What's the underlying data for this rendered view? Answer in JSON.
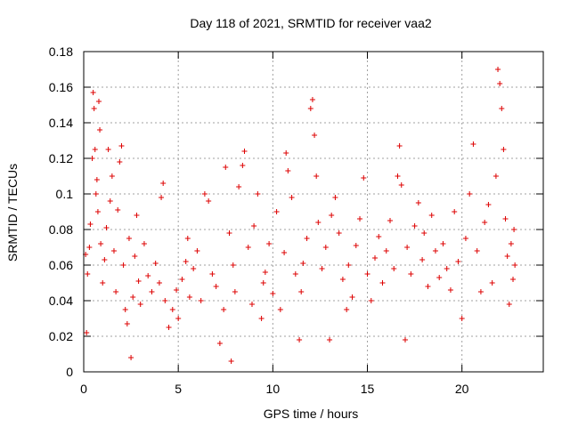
{
  "chart_data": {
    "type": "scatter",
    "title": "Day 118 of 2021, SRMTID for receiver vaa2",
    "xlabel": "GPS time / hours",
    "ylabel": "SRMTID / TECUs",
    "xlim": [
      0,
      24.3
    ],
    "ylim": [
      0,
      0.18
    ],
    "xticks": [
      0,
      5,
      10,
      15,
      20
    ],
    "xtick_labels": [
      "0",
      "5",
      "10",
      "15",
      "20"
    ],
    "yticks": [
      0,
      0.02,
      0.04,
      0.06,
      0.08,
      0.1,
      0.12,
      0.14,
      0.16,
      0.18
    ],
    "ytick_labels": [
      "0",
      "0.02",
      "0.04",
      "0.06",
      "0.08",
      "0.1",
      "0.12",
      "0.14",
      "0.16",
      "0.18"
    ],
    "grid": true,
    "marker": "+",
    "color": "#dd0000",
    "x_data_range": [
      0,
      22.8
    ],
    "series": [
      {
        "name": "SRMTID",
        "points": [
          [
            0.1,
            0.066
          ],
          [
            0.15,
            0.022
          ],
          [
            0.2,
            0.055
          ],
          [
            0.3,
            0.07
          ],
          [
            0.35,
            0.083
          ],
          [
            0.45,
            0.12
          ],
          [
            0.5,
            0.157
          ],
          [
            0.55,
            0.148
          ],
          [
            0.6,
            0.125
          ],
          [
            0.65,
            0.1
          ],
          [
            0.7,
            0.108
          ],
          [
            0.75,
            0.09
          ],
          [
            0.8,
            0.152
          ],
          [
            0.85,
            0.136
          ],
          [
            0.9,
            0.072
          ],
          [
            1.0,
            0.05
          ],
          [
            1.1,
            0.063
          ],
          [
            1.2,
            0.081
          ],
          [
            1.3,
            0.125
          ],
          [
            1.4,
            0.096
          ],
          [
            1.5,
            0.11
          ],
          [
            1.6,
            0.068
          ],
          [
            1.7,
            0.045
          ],
          [
            1.8,
            0.091
          ],
          [
            1.9,
            0.118
          ],
          [
            2.0,
            0.127
          ],
          [
            2.1,
            0.06
          ],
          [
            2.2,
            0.035
          ],
          [
            2.3,
            0.027
          ],
          [
            2.4,
            0.075
          ],
          [
            2.5,
            0.008
          ],
          [
            2.6,
            0.042
          ],
          [
            2.7,
            0.065
          ],
          [
            2.8,
            0.088
          ],
          [
            2.9,
            0.051
          ],
          [
            3.0,
            0.038
          ],
          [
            3.2,
            0.072
          ],
          [
            3.4,
            0.054
          ],
          [
            3.6,
            0.045
          ],
          [
            3.8,
            0.061
          ],
          [
            4.0,
            0.05
          ],
          [
            4.1,
            0.098
          ],
          [
            4.2,
            0.106
          ],
          [
            4.3,
            0.04
          ],
          [
            4.5,
            0.025
          ],
          [
            4.7,
            0.035
          ],
          [
            4.9,
            0.046
          ],
          [
            5.0,
            0.03
          ],
          [
            5.2,
            0.052
          ],
          [
            5.4,
            0.062
          ],
          [
            5.5,
            0.075
          ],
          [
            5.6,
            0.042
          ],
          [
            5.8,
            0.058
          ],
          [
            6.0,
            0.068
          ],
          [
            6.2,
            0.04
          ],
          [
            6.4,
            0.1
          ],
          [
            6.6,
            0.096
          ],
          [
            6.8,
            0.055
          ],
          [
            7.0,
            0.048
          ],
          [
            7.2,
            0.016
          ],
          [
            7.4,
            0.035
          ],
          [
            7.5,
            0.115
          ],
          [
            7.7,
            0.078
          ],
          [
            7.8,
            0.006
          ],
          [
            7.9,
            0.06
          ],
          [
            8.0,
            0.045
          ],
          [
            8.2,
            0.104
          ],
          [
            8.4,
            0.116
          ],
          [
            8.5,
            0.124
          ],
          [
            8.7,
            0.07
          ],
          [
            8.9,
            0.038
          ],
          [
            9.0,
            0.082
          ],
          [
            9.2,
            0.1
          ],
          [
            9.4,
            0.03
          ],
          [
            9.5,
            0.05
          ],
          [
            9.6,
            0.056
          ],
          [
            9.8,
            0.072
          ],
          [
            10.0,
            0.044
          ],
          [
            10.2,
            0.09
          ],
          [
            10.4,
            0.035
          ],
          [
            10.6,
            0.067
          ],
          [
            10.7,
            0.123
          ],
          [
            10.8,
            0.113
          ],
          [
            11.0,
            0.098
          ],
          [
            11.2,
            0.055
          ],
          [
            11.4,
            0.018
          ],
          [
            11.5,
            0.045
          ],
          [
            11.6,
            0.061
          ],
          [
            11.8,
            0.075
          ],
          [
            12.0,
            0.148
          ],
          [
            12.1,
            0.153
          ],
          [
            12.2,
            0.133
          ],
          [
            12.3,
            0.11
          ],
          [
            12.4,
            0.084
          ],
          [
            12.6,
            0.058
          ],
          [
            12.8,
            0.07
          ],
          [
            13.0,
            0.018
          ],
          [
            13.1,
            0.088
          ],
          [
            13.3,
            0.098
          ],
          [
            13.5,
            0.078
          ],
          [
            13.7,
            0.052
          ],
          [
            13.9,
            0.035
          ],
          [
            14.0,
            0.06
          ],
          [
            14.2,
            0.042
          ],
          [
            14.4,
            0.071
          ],
          [
            14.6,
            0.086
          ],
          [
            14.8,
            0.109
          ],
          [
            15.0,
            0.055
          ],
          [
            15.2,
            0.04
          ],
          [
            15.4,
            0.064
          ],
          [
            15.6,
            0.076
          ],
          [
            15.8,
            0.05
          ],
          [
            16.0,
            0.068
          ],
          [
            16.2,
            0.085
          ],
          [
            16.4,
            0.058
          ],
          [
            16.6,
            0.11
          ],
          [
            16.7,
            0.127
          ],
          [
            16.8,
            0.105
          ],
          [
            17.0,
            0.018
          ],
          [
            17.1,
            0.07
          ],
          [
            17.3,
            0.055
          ],
          [
            17.5,
            0.082
          ],
          [
            17.7,
            0.095
          ],
          [
            17.9,
            0.063
          ],
          [
            18.0,
            0.078
          ],
          [
            18.2,
            0.048
          ],
          [
            18.4,
            0.088
          ],
          [
            18.6,
            0.068
          ],
          [
            18.8,
            0.053
          ],
          [
            19.0,
            0.072
          ],
          [
            19.2,
            0.058
          ],
          [
            19.4,
            0.046
          ],
          [
            19.6,
            0.09
          ],
          [
            19.8,
            0.062
          ],
          [
            20.0,
            0.03
          ],
          [
            20.2,
            0.075
          ],
          [
            20.4,
            0.1
          ],
          [
            20.6,
            0.128
          ],
          [
            20.8,
            0.068
          ],
          [
            21.0,
            0.045
          ],
          [
            21.2,
            0.084
          ],
          [
            21.4,
            0.094
          ],
          [
            21.6,
            0.05
          ],
          [
            21.8,
            0.11
          ],
          [
            21.9,
            0.17
          ],
          [
            22.0,
            0.162
          ],
          [
            22.1,
            0.148
          ],
          [
            22.2,
            0.125
          ],
          [
            22.3,
            0.086
          ],
          [
            22.4,
            0.065
          ],
          [
            22.5,
            0.038
          ],
          [
            22.6,
            0.072
          ],
          [
            22.7,
            0.052
          ],
          [
            22.75,
            0.08
          ],
          [
            22.8,
            0.06
          ]
        ]
      }
    ]
  }
}
